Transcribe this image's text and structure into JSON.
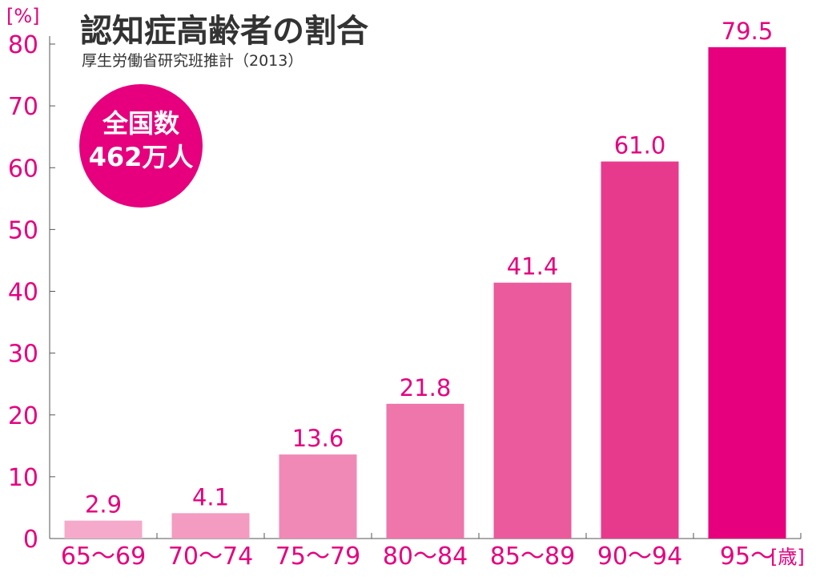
{
  "chart_data": {
    "type": "bar",
    "title": "認知症高齢者の割合",
    "subtitle": "厚生労働省研究班推計（2013）",
    "ylabel": "[%]",
    "xlabel": "[歳]",
    "ylim": [
      0,
      80
    ],
    "yticks": [
      "0",
      "10",
      "20",
      "30",
      "40",
      "50",
      "60",
      "70",
      "80"
    ],
    "categories": [
      "65〜69",
      "70〜74",
      "75〜79",
      "80〜84",
      "85〜89",
      "90〜94",
      "95〜"
    ],
    "values": [
      2.9,
      4.1,
      13.6,
      21.8,
      41.4,
      61.0,
      79.5
    ],
    "value_labels": [
      "2.9",
      "4.1",
      "13.6",
      "21.8",
      "41.4",
      "61.0",
      "79.5"
    ],
    "bar_colors": [
      "#f5aacb",
      "#f39bc1",
      "#f089b6",
      "#ee76aa",
      "#eb5a9c",
      "#e83a8c",
      "#e6007e"
    ],
    "grid": false,
    "badge": {
      "line1": "全国数",
      "line2": "462万人",
      "color": "#e6007e"
    },
    "accent": "#e6007e"
  }
}
